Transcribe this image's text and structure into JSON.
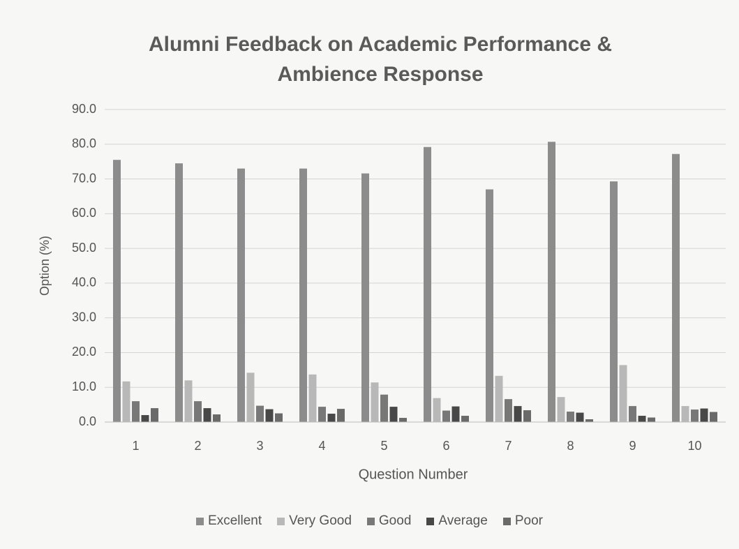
{
  "chart_data": {
    "type": "bar",
    "title": "Alumni Feedback on Academic Performance & Ambience Response",
    "x_label": "Question Number",
    "y_label": "Option (%)",
    "categories": [
      "1",
      "2",
      "3",
      "4",
      "5",
      "6",
      "7",
      "8",
      "9",
      "10"
    ],
    "series": [
      {
        "name": "Excellent",
        "color": "#8c8c8c",
        "values": [
          75.5,
          74.5,
          73,
          73,
          71.6,
          79.2,
          67,
          80.7,
          69.3,
          77.2
        ]
      },
      {
        "name": "Very Good",
        "color": "#b8b8b8",
        "values": [
          11.7,
          12,
          14.2,
          13.7,
          11.4,
          6.9,
          13.3,
          7.2,
          16.4,
          4.6
        ]
      },
      {
        "name": "Good",
        "color": "#787878",
        "values": [
          6,
          6,
          4.7,
          4.4,
          7.9,
          3.3,
          6.6,
          3,
          4.6,
          3.6
        ]
      },
      {
        "name": "Average",
        "color": "#484848",
        "values": [
          2,
          4,
          3.7,
          2.4,
          4.4,
          4.5,
          4.6,
          2.7,
          1.8,
          3.9
        ]
      },
      {
        "name": "Poor",
        "color": "#6a6a6a",
        "values": [
          4,
          2.2,
          2.5,
          3.8,
          1.2,
          1.8,
          3.4,
          0.8,
          1.3,
          2.9
        ]
      }
    ],
    "ylim": [
      0,
      90
    ],
    "yticks": [
      {
        "value": 0,
        "label": "0.0"
      },
      {
        "value": 10,
        "label": "10.0"
      },
      {
        "value": 20,
        "label": "20.0"
      },
      {
        "value": 30,
        "label": "30.0"
      },
      {
        "value": 40,
        "label": "40.0"
      },
      {
        "value": 50,
        "label": "50.0"
      },
      {
        "value": 60,
        "label": "60.0"
      },
      {
        "value": 70,
        "label": "70.0"
      },
      {
        "value": 80,
        "label": "80.0"
      },
      {
        "value": 90,
        "label": "90.0"
      }
    ],
    "grid": true,
    "legend": "bottom"
  }
}
